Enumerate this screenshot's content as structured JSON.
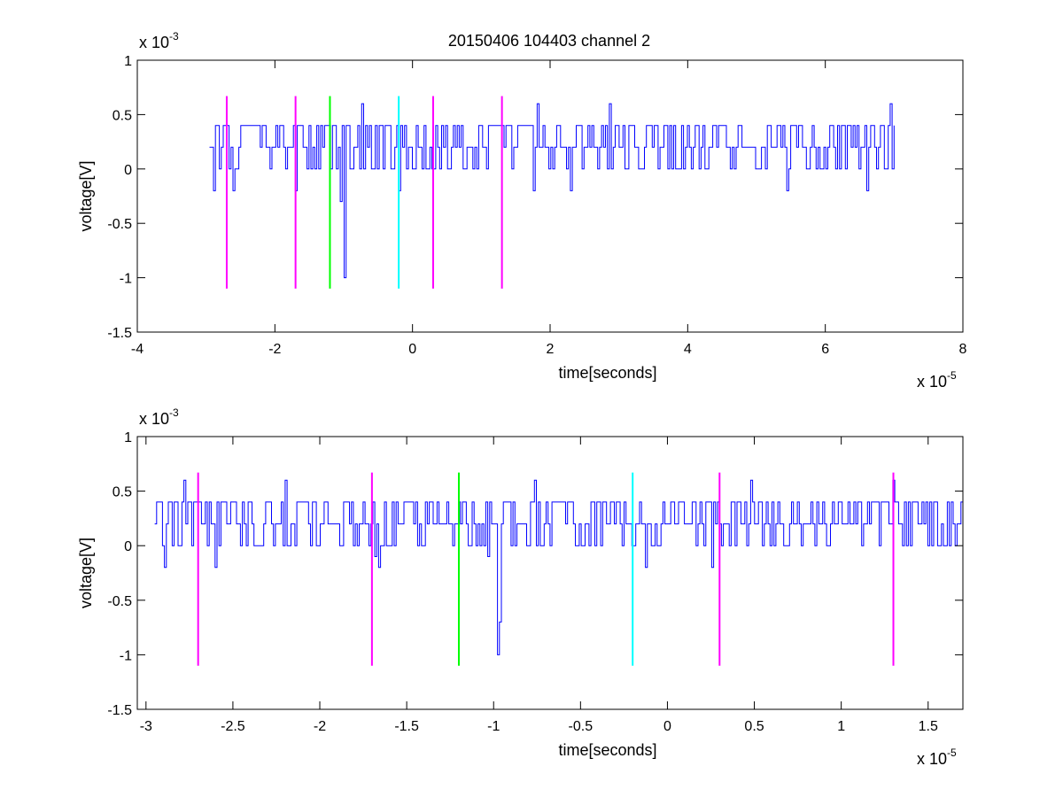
{
  "title": "20150406 104403 channel 2",
  "colors": {
    "signal": "#0000ff",
    "magenta": "#ff00ff",
    "green": "#00ff00",
    "cyan": "#00ffff",
    "axes": "#000000",
    "background": "#ffffff"
  },
  "chart_data": [
    {
      "type": "line",
      "title": "20150406 104403 channel 2",
      "xlabel": "time[seconds]",
      "ylabel": "voltage[V]",
      "x_exponent_label": "x 10",
      "x_exponent_power": "-5",
      "y_exponent_label": "x 10",
      "y_exponent_power": "-3",
      "xlim": [
        -4,
        8
      ],
      "ylim": [
        -1.5,
        1
      ],
      "x_ticks": [
        -4,
        -2,
        0,
        2,
        4,
        6,
        8
      ],
      "x_tick_labels": [
        "-4",
        "-2",
        "0",
        "2",
        "4",
        "6",
        "8"
      ],
      "y_ticks": [
        -1.5,
        -1,
        -0.5,
        0,
        0.5,
        1
      ],
      "y_tick_labels": [
        "-1.5",
        "-1",
        "-0.5",
        "0",
        "0.5",
        "1"
      ],
      "grid": false,
      "signal": {
        "x_start": -2.95,
        "x_end": 7.0,
        "baseline_levels": [
          0,
          0.2,
          0.4
        ],
        "spikes": [
          {
            "x": -2.9,
            "y": -0.2
          },
          {
            "x": -2.6,
            "y": -0.2
          },
          {
            "x": -1.7,
            "y": -0.2
          },
          {
            "x": -1.05,
            "y": -0.3
          },
          {
            "x": -0.98,
            "y": -1.0
          },
          {
            "x": -0.75,
            "y": 0.6
          },
          {
            "x": -0.2,
            "y": -0.2
          },
          {
            "x": 1.8,
            "y": 0.6
          },
          {
            "x": 1.75,
            "y": -0.2
          },
          {
            "x": 2.3,
            "y": -0.2
          },
          {
            "x": 2.85,
            "y": 0.6
          },
          {
            "x": 5.45,
            "y": -0.2
          },
          {
            "x": 6.6,
            "y": -0.2
          },
          {
            "x": 6.95,
            "y": 0.6
          },
          {
            "x": 6.95,
            "y": -0.2
          }
        ]
      },
      "markers": [
        {
          "x": -2.7,
          "color": "magenta",
          "y_top": 0.67,
          "y_bottom": -1.1
        },
        {
          "x": -1.7,
          "color": "magenta",
          "y_top": 0.67,
          "y_bottom": -1.1
        },
        {
          "x": -1.2,
          "color": "green",
          "y_top": 0.67,
          "y_bottom": -1.1
        },
        {
          "x": -0.2,
          "color": "cyan",
          "y_top": 0.67,
          "y_bottom": -1.1
        },
        {
          "x": 0.3,
          "color": "magenta",
          "y_top": 0.67,
          "y_bottom": -1.1
        },
        {
          "x": 1.3,
          "color": "magenta",
          "y_top": 0.67,
          "y_bottom": -1.1
        }
      ]
    },
    {
      "type": "line",
      "title": "",
      "xlabel": "time[seconds]",
      "ylabel": "voltage[V]",
      "x_exponent_label": "x 10",
      "x_exponent_power": "-5",
      "y_exponent_label": "x 10",
      "y_exponent_power": "-3",
      "xlim": [
        -3.05,
        1.7
      ],
      "ylim": [
        -1.5,
        1
      ],
      "x_ticks": [
        -3,
        -2.5,
        -2,
        -1.5,
        -1,
        -0.5,
        0,
        0.5,
        1,
        1.5
      ],
      "x_tick_labels": [
        "-3",
        "-2.5",
        "-2",
        "-1.5",
        "-1",
        "-0.5",
        "0",
        "0.5",
        "1",
        "1.5"
      ],
      "y_ticks": [
        -1.5,
        -1,
        -0.5,
        0,
        0.5,
        1
      ],
      "y_tick_labels": [
        "-1.5",
        "-1",
        "-0.5",
        "0",
        "0.5",
        "1"
      ],
      "grid": false,
      "signal": {
        "x_start": -2.95,
        "x_end": 1.7,
        "baseline_levels": [
          0,
          0.2,
          0.4
        ],
        "spikes": [
          {
            "x": -2.89,
            "y": -0.2
          },
          {
            "x": -2.78,
            "y": 0.6
          },
          {
            "x": -2.6,
            "y": -0.2
          },
          {
            "x": -2.2,
            "y": 0.6
          },
          {
            "x": -1.68,
            "y": -0.1
          },
          {
            "x": -1.66,
            "y": -0.2
          },
          {
            "x": -1.03,
            "y": -0.1
          },
          {
            "x": -0.98,
            "y": -1.0
          },
          {
            "x": -0.97,
            "y": -0.7
          },
          {
            "x": -0.76,
            "y": 0.6
          },
          {
            "x": -0.13,
            "y": -0.2
          },
          {
            "x": 0.25,
            "y": -0.2
          },
          {
            "x": 0.48,
            "y": 0.6
          },
          {
            "x": 1.3,
            "y": 0.6
          }
        ]
      },
      "markers": [
        {
          "x": -2.7,
          "color": "magenta",
          "y_top": 0.67,
          "y_bottom": -1.1
        },
        {
          "x": -1.7,
          "color": "magenta",
          "y_top": 0.67,
          "y_bottom": -1.1
        },
        {
          "x": -1.2,
          "color": "green",
          "y_top": 0.67,
          "y_bottom": -1.1
        },
        {
          "x": -0.2,
          "color": "cyan",
          "y_top": 0.67,
          "y_bottom": -1.1
        },
        {
          "x": 0.3,
          "color": "magenta",
          "y_top": 0.67,
          "y_bottom": -1.1
        },
        {
          "x": 1.3,
          "color": "magenta",
          "y_top": 0.67,
          "y_bottom": -1.1
        }
      ]
    }
  ]
}
